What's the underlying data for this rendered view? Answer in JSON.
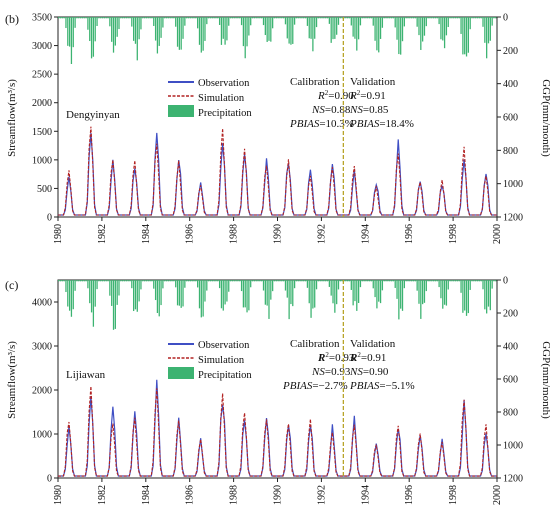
{
  "chart_data": [
    {
      "type": "line",
      "panel_label": "(b)",
      "station": "Dengyinyan",
      "xlabel": "",
      "ylabel": "Streamflow(m³/s)",
      "y2label": "GGP(mm/month)",
      "xlim": [
        1980,
        2000
      ],
      "ylim": [
        0,
        3500
      ],
      "y2lim": [
        1200,
        0
      ],
      "x_ticks": [
        "1980",
        "1982",
        "1984",
        "1986",
        "1988",
        "1990",
        "1992",
        "1994",
        "1996",
        "1998",
        "2000"
      ],
      "y_ticks": [
        "0",
        "500",
        "1000",
        "1500",
        "2000",
        "2500",
        "3000",
        "3500"
      ],
      "y2_ticks": [
        "0",
        "200",
        "400",
        "600",
        "800",
        "1000",
        "1200"
      ],
      "split_year": 1993,
      "legend": [
        "Observation",
        "Simulation",
        "Precipitation"
      ],
      "colors": {
        "observation": "#3f4fc4",
        "simulation": "#b22222",
        "precipitation": "#3cb371",
        "split": "#b8a42a"
      },
      "calibration": {
        "title": "Calibration",
        "r2": "0.90",
        "ns": "0.88",
        "pbias": "10.3%"
      },
      "validation": {
        "title": "Validation",
        "r2": "0.91",
        "ns": "0.85",
        "pbias": "18.4%"
      },
      "annual_peaks_obs": [
        700,
        1600,
        900,
        900,
        1350,
        1000,
        560,
        1400,
        1050,
        950,
        1000,
        800,
        900,
        750,
        600,
        1200,
        650,
        550,
        1100,
        800
      ],
      "annual_peaks_sim": [
        800,
        1580,
        1000,
        950,
        1300,
        950,
        520,
        1500,
        1150,
        900,
        950,
        700,
        850,
        850,
        500,
        1100,
        600,
        600,
        1150,
        700
      ],
      "annual_precip_peak": [
        300,
        310,
        250,
        270,
        290,
        260,
        240,
        230,
        260,
        250,
        240,
        230,
        220,
        210,
        220,
        250,
        230,
        210,
        380,
        260
      ]
    },
    {
      "type": "line",
      "panel_label": "(c)",
      "station": "Lijiawan",
      "xlabel": "",
      "ylabel": "Streamflow(m³/s)",
      "y2label": "GGP(mm/month)",
      "xlim": [
        1980,
        2000
      ],
      "ylim": [
        0,
        4500
      ],
      "y2lim": [
        1200,
        0
      ],
      "x_ticks": [
        "1980",
        "1982",
        "1984",
        "1986",
        "1988",
        "1990",
        "1992",
        "1994",
        "1996",
        "1998",
        "2000"
      ],
      "y_ticks": [
        "0",
        "1000",
        "2000",
        "3000",
        "4000"
      ],
      "y2_ticks": [
        "0",
        "200",
        "400",
        "600",
        "800",
        "1000",
        "1200"
      ],
      "split_year": 1993,
      "legend": [
        "Observation",
        "Simulation",
        "Precipitation"
      ],
      "colors": {
        "observation": "#3f4fc4",
        "simulation": "#b22222",
        "precipitation": "#3cb371",
        "split": "#b8a42a"
      },
      "calibration": {
        "title": "Calibration",
        "r2": "0.93",
        "ns": "0.93",
        "pbias": "−2.7%"
      },
      "validation": {
        "title": "Validation",
        "r2": "0.91",
        "ns": "0.90",
        "pbias": "−5.1%"
      },
      "annual_peaks_obs": [
        1200,
        2000,
        1500,
        1400,
        2050,
        1300,
        800,
        1800,
        1400,
        1300,
        1300,
        1200,
        1050,
        1300,
        800,
        1200,
        1050,
        800,
        1600,
        1100
      ],
      "annual_peaks_sim": [
        1300,
        2100,
        1200,
        1350,
        2000,
        1250,
        850,
        1900,
        1450,
        1350,
        1250,
        1250,
        1000,
        1200,
        750,
        1150,
        1000,
        750,
        1800,
        1150
      ],
      "annual_precip_peak": [
        280,
        290,
        350,
        270,
        260,
        250,
        240,
        260,
        250,
        240,
        250,
        230,
        220,
        210,
        230,
        260,
        240,
        220,
        300,
        260
      ]
    }
  ]
}
